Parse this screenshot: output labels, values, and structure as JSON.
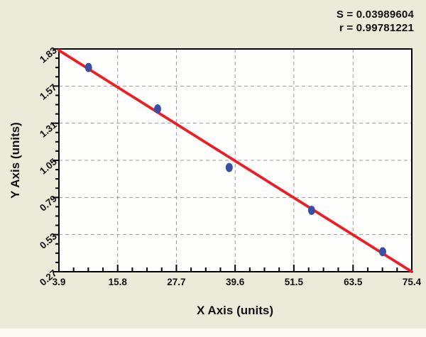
{
  "stats": {
    "line1": "S = 0.03989604",
    "line2": "r = 0.99781221"
  },
  "chart_data": {
    "type": "scatter",
    "title": "",
    "xlabel": "X Axis (units)",
    "ylabel": "Y Axis (units)",
    "x_range": [
      3.9,
      75.4
    ],
    "y_range": [
      0.27,
      1.83
    ],
    "x_ticks": [
      3.9,
      15.8,
      27.7,
      39.6,
      51.5,
      63.5,
      75.4
    ],
    "y_ticks": [
      0.27,
      0.53,
      0.79,
      1.05,
      1.31,
      1.57,
      1.83
    ],
    "minor_divisions_per_major": 4,
    "grid": "dashed",
    "legend": "none",
    "points": [
      {
        "x": 9.9,
        "y": 1.7
      },
      {
        "x": 23.9,
        "y": 1.41
      },
      {
        "x": 38.4,
        "y": 1.0
      },
      {
        "x": 55.1,
        "y": 0.7
      },
      {
        "x": 69.5,
        "y": 0.41
      }
    ],
    "regression_line": {
      "x1": 3.9,
      "y1": 1.82,
      "x2": 75.4,
      "y2": 0.27
    },
    "annotations": [
      "S = 0.03989604",
      "r = 0.99781221"
    ],
    "colors": {
      "background": "#ECEAD8",
      "page_strip": "#FBFBF3",
      "plot_background": "#FEFEFC",
      "axis": "#000000",
      "grid": "#9A9A9A",
      "line": "#EE1C25",
      "points": "#3B4EA3",
      "text": "#111111"
    }
  }
}
